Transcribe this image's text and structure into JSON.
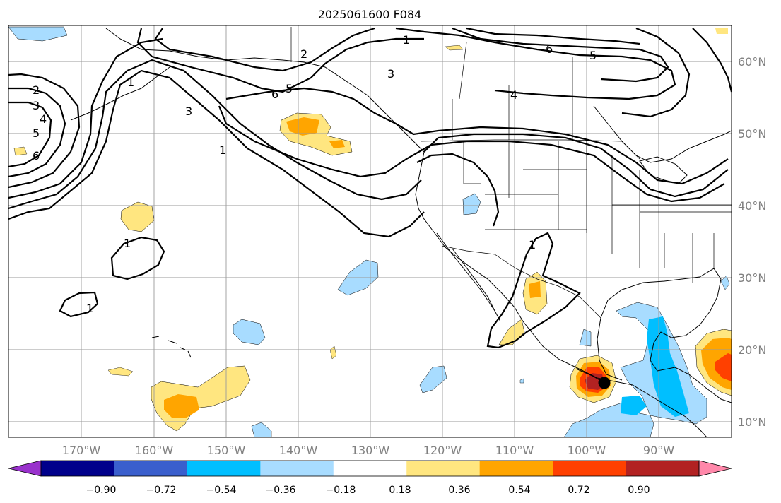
{
  "title": "2025061600 F084",
  "map": {
    "lon_labels": [
      "170°W",
      "160°W",
      "150°W",
      "140°W",
      "130°W",
      "120°W",
      "110°W",
      "100°W",
      "90°W"
    ],
    "lat_labels": [
      "60°N",
      "50°N",
      "40°N",
      "30°N",
      "20°N",
      "10°N"
    ],
    "contour_labels": [
      "1",
      "1",
      "1",
      "1",
      "1",
      "2",
      "2",
      "3",
      "3",
      "4",
      "4",
      "5",
      "5",
      "6",
      "6",
      "6",
      "3",
      "1"
    ],
    "storm_marker": "black-dot",
    "fill_colors": {
      "light_blue": "#a8dcff",
      "cyan": "#00bfff",
      "yellow": "#ffe680",
      "orange": "#ffa500",
      "red_orange": "#ff4000",
      "dark_red": "#b22222"
    }
  },
  "colorbar": {
    "colors": [
      "#9932cc",
      "#00008b",
      "#3a5fcd",
      "#00bfff",
      "#a8dcff",
      "#ffffff",
      "#ffe680",
      "#ffa500",
      "#ff4000",
      "#b22222",
      "#ff88aa"
    ],
    "tick_labels": [
      "−0.90",
      "−0.72",
      "−0.54",
      "−0.36",
      "−0.18",
      "0.18",
      "0.36",
      "0.54",
      "0.72",
      "0.90"
    ]
  }
}
